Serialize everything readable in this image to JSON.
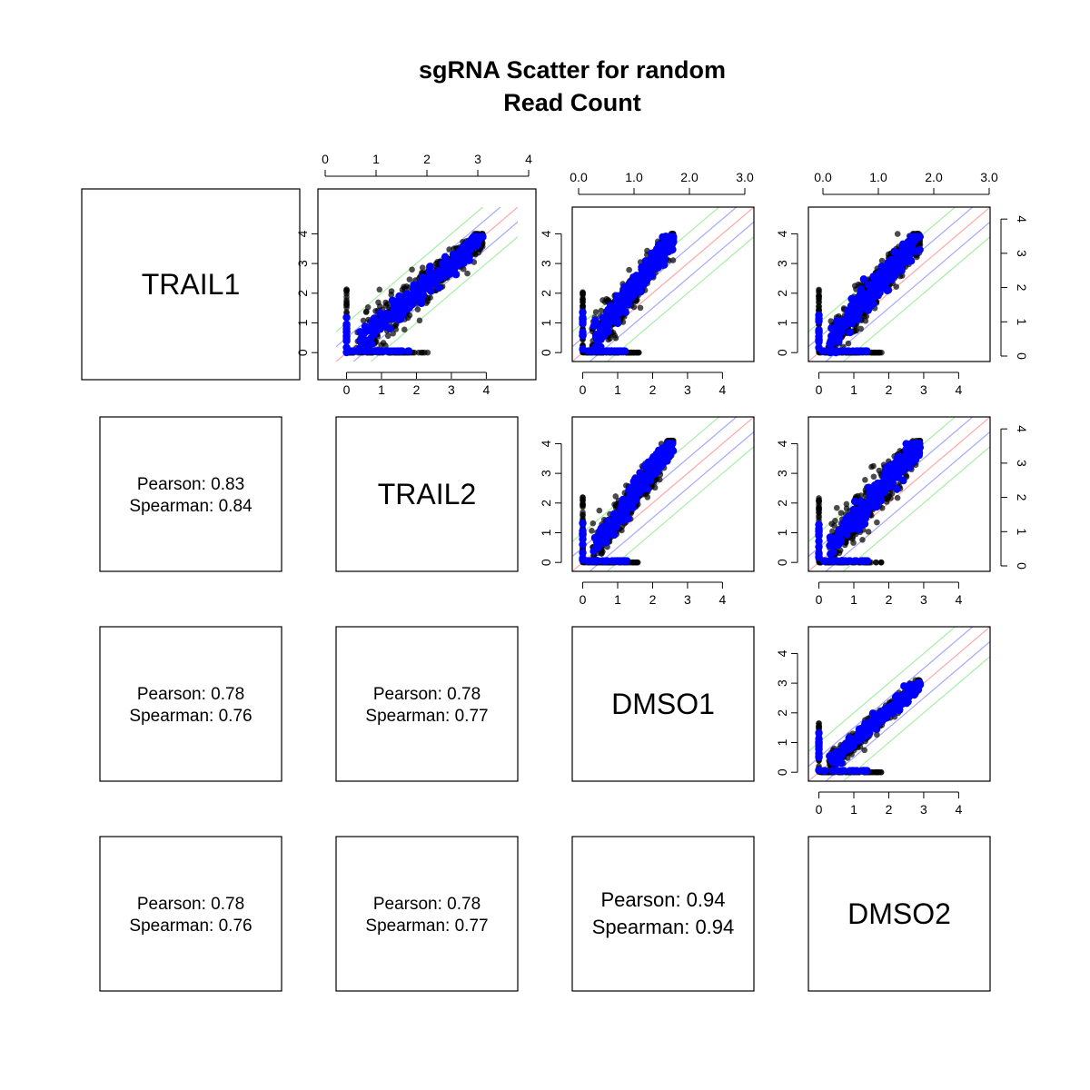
{
  "chart_data": {
    "type": "scatter",
    "title_lines": [
      "sgRNA Scatter for random",
      "Read Count"
    ],
    "variables": [
      "TRAIL1",
      "TRAIL2",
      "DMSO1",
      "DMSO2"
    ],
    "correlations": [
      {
        "row": 1,
        "col": 0,
        "pearson_label": "Pearson: 0.83",
        "spearman_label": "Spearman: 0.84",
        "pearson": 0.83,
        "spearman": 0.84
      },
      {
        "row": 2,
        "col": 0,
        "pearson_label": "Pearson: 0.78",
        "spearman_label": "Spearman: 0.76",
        "pearson": 0.78,
        "spearman": 0.76
      },
      {
        "row": 2,
        "col": 1,
        "pearson_label": "Pearson: 0.78",
        "spearman_label": "Spearman: 0.77",
        "pearson": 0.78,
        "spearman": 0.77
      },
      {
        "row": 3,
        "col": 0,
        "pearson_label": "Pearson: 0.78",
        "spearman_label": "Spearman: 0.76",
        "pearson": 0.78,
        "spearman": 0.76
      },
      {
        "row": 3,
        "col": 1,
        "pearson_label": "Pearson: 0.78",
        "spearman_label": "Spearman: 0.77",
        "pearson": 0.78,
        "spearman": 0.77
      },
      {
        "row": 3,
        "col": 2,
        "pearson_label": "Pearson: 0.94",
        "spearman_label": "Spearman: 0.94",
        "pearson": 0.94,
        "spearman": 0.94
      }
    ],
    "scatter_panels": [
      {
        "row": 0,
        "col": 1,
        "xmax": 3.9,
        "ymax": 3.9,
        "spread": 0.34
      },
      {
        "row": 0,
        "col": 2,
        "xmax": 2.6,
        "ymax": 3.9,
        "spread": 0.36
      },
      {
        "row": 0,
        "col": 3,
        "xmax": 2.9,
        "ymax": 3.9,
        "spread": 0.38
      },
      {
        "row": 1,
        "col": 2,
        "xmax": 2.6,
        "ymax": 4.0,
        "spread": 0.36
      },
      {
        "row": 1,
        "col": 3,
        "xmax": 2.9,
        "ymax": 4.0,
        "spread": 0.38
      },
      {
        "row": 2,
        "col": 3,
        "xmax": 2.9,
        "ymax": 3.0,
        "spread": 0.18
      }
    ],
    "axes": {
      "panel_range": [
        -0.3,
        4.9
      ],
      "ticks": [
        "0",
        "1",
        "2",
        "3",
        "4"
      ],
      "top_ticks_col1": [
        "0",
        "1",
        "2",
        "3",
        "4"
      ],
      "top_ticks_col2_col3": [
        "0.0",
        "1.0",
        "2.0",
        "3.0"
      ],
      "right_ticks": [
        "0",
        "1",
        "2",
        "3",
        "4"
      ]
    },
    "reference_lines": [
      {
        "name": "identity",
        "color": "#ff0000",
        "offset": 0
      },
      {
        "name": "band-1",
        "color": "#0000ff",
        "offset": 0.5
      },
      {
        "name": "band-2",
        "color": "#00cc00",
        "offset": 1.0
      }
    ],
    "colors": {
      "all_points": "#000000",
      "highlight_points": "#0000ff"
    },
    "grid": false,
    "legend": "none"
  }
}
